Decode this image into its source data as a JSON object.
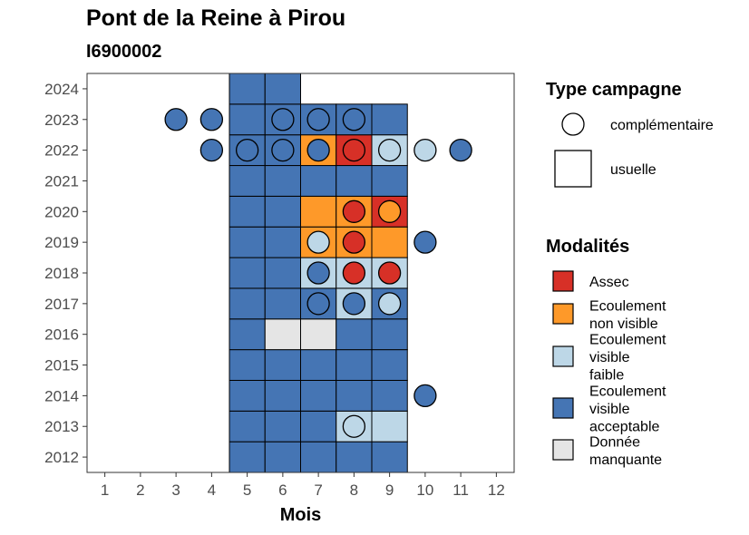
{
  "header": {
    "title": "Pont de la Reine à Pirou",
    "subtitle": "I6900002"
  },
  "colors": {
    "Assec": "#d73027",
    "Ecoulement non visible": "#fe9929",
    "Ecoulement visible faible": "#bdd7e7",
    "Ecoulement visible acceptable": "#4575b4",
    "Donnée manquante": "#e5e5e5"
  },
  "legend": {
    "campagne_title": "Type campagne",
    "campagne_items": [
      {
        "label": "complémentaire",
        "shape": "circle"
      },
      {
        "label": "usuelle",
        "shape": "square"
      }
    ],
    "modalites_title": "Modalités",
    "modalites_items": [
      {
        "key": "Assec",
        "lines": [
          "Assec"
        ]
      },
      {
        "key": "Ecoulement non visible",
        "lines": [
          "Ecoulement",
          "non visible"
        ]
      },
      {
        "key": "Ecoulement visible faible",
        "lines": [
          "Ecoulement",
          "visible",
          "faible"
        ]
      },
      {
        "key": "Ecoulement visible acceptable",
        "lines": [
          "Ecoulement",
          "visible",
          "acceptable"
        ]
      },
      {
        "key": "Donnée manquante",
        "lines": [
          "Donnée",
          "manquante"
        ]
      }
    ]
  },
  "chart_data": {
    "type": "heatmap",
    "xlabel": "Mois",
    "ylabel": "",
    "x_ticks": [
      "1",
      "2",
      "3",
      "4",
      "5",
      "6",
      "7",
      "8",
      "9",
      "10",
      "11",
      "12"
    ],
    "y_ticks": [
      "2012",
      "2013",
      "2014",
      "2015",
      "2016",
      "2017",
      "2018",
      "2019",
      "2020",
      "2021",
      "2022",
      "2023",
      "2024"
    ],
    "xlim": [
      0.5,
      12.5
    ],
    "ylim": [
      2011.5,
      2024.5
    ],
    "usuelle": [
      {
        "year": 2012,
        "month": 5,
        "value": "Ecoulement visible acceptable"
      },
      {
        "year": 2012,
        "month": 6,
        "value": "Ecoulement visible acceptable"
      },
      {
        "year": 2012,
        "month": 7,
        "value": "Ecoulement visible acceptable"
      },
      {
        "year": 2012,
        "month": 8,
        "value": "Ecoulement visible acceptable"
      },
      {
        "year": 2012,
        "month": 9,
        "value": "Ecoulement visible acceptable"
      },
      {
        "year": 2013,
        "month": 5,
        "value": "Ecoulement visible acceptable"
      },
      {
        "year": 2013,
        "month": 6,
        "value": "Ecoulement visible acceptable"
      },
      {
        "year": 2013,
        "month": 7,
        "value": "Ecoulement visible acceptable"
      },
      {
        "year": 2013,
        "month": 8,
        "value": "Ecoulement visible faible"
      },
      {
        "year": 2013,
        "month": 9,
        "value": "Ecoulement visible faible"
      },
      {
        "year": 2014,
        "month": 5,
        "value": "Ecoulement visible acceptable"
      },
      {
        "year": 2014,
        "month": 6,
        "value": "Ecoulement visible acceptable"
      },
      {
        "year": 2014,
        "month": 7,
        "value": "Ecoulement visible acceptable"
      },
      {
        "year": 2014,
        "month": 8,
        "value": "Ecoulement visible acceptable"
      },
      {
        "year": 2014,
        "month": 9,
        "value": "Ecoulement visible acceptable"
      },
      {
        "year": 2015,
        "month": 5,
        "value": "Ecoulement visible acceptable"
      },
      {
        "year": 2015,
        "month": 6,
        "value": "Ecoulement visible acceptable"
      },
      {
        "year": 2015,
        "month": 7,
        "value": "Ecoulement visible acceptable"
      },
      {
        "year": 2015,
        "month": 8,
        "value": "Ecoulement visible acceptable"
      },
      {
        "year": 2015,
        "month": 9,
        "value": "Ecoulement visible acceptable"
      },
      {
        "year": 2016,
        "month": 5,
        "value": "Ecoulement visible acceptable"
      },
      {
        "year": 2016,
        "month": 6,
        "value": "Donnée manquante"
      },
      {
        "year": 2016,
        "month": 7,
        "value": "Donnée manquante"
      },
      {
        "year": 2016,
        "month": 8,
        "value": "Ecoulement visible acceptable"
      },
      {
        "year": 2016,
        "month": 9,
        "value": "Ecoulement visible acceptable"
      },
      {
        "year": 2017,
        "month": 5,
        "value": "Ecoulement visible acceptable"
      },
      {
        "year": 2017,
        "month": 6,
        "value": "Ecoulement visible acceptable"
      },
      {
        "year": 2017,
        "month": 7,
        "value": "Ecoulement visible acceptable"
      },
      {
        "year": 2017,
        "month": 8,
        "value": "Ecoulement visible faible"
      },
      {
        "year": 2017,
        "month": 9,
        "value": "Ecoulement visible acceptable"
      },
      {
        "year": 2018,
        "month": 5,
        "value": "Ecoulement visible acceptable"
      },
      {
        "year": 2018,
        "month": 6,
        "value": "Ecoulement visible acceptable"
      },
      {
        "year": 2018,
        "month": 7,
        "value": "Ecoulement visible faible"
      },
      {
        "year": 2018,
        "month": 8,
        "value": "Ecoulement visible faible"
      },
      {
        "year": 2018,
        "month": 9,
        "value": "Ecoulement visible faible"
      },
      {
        "year": 2019,
        "month": 5,
        "value": "Ecoulement visible acceptable"
      },
      {
        "year": 2019,
        "month": 6,
        "value": "Ecoulement visible acceptable"
      },
      {
        "year": 2019,
        "month": 7,
        "value": "Ecoulement non visible"
      },
      {
        "year": 2019,
        "month": 8,
        "value": "Ecoulement non visible"
      },
      {
        "year": 2019,
        "month": 9,
        "value": "Ecoulement non visible"
      },
      {
        "year": 2020,
        "month": 5,
        "value": "Ecoulement visible acceptable"
      },
      {
        "year": 2020,
        "month": 6,
        "value": "Ecoulement visible acceptable"
      },
      {
        "year": 2020,
        "month": 7,
        "value": "Ecoulement non visible"
      },
      {
        "year": 2020,
        "month": 8,
        "value": "Ecoulement non visible"
      },
      {
        "year": 2020,
        "month": 9,
        "value": "Assec"
      },
      {
        "year": 2021,
        "month": 5,
        "value": "Ecoulement visible acceptable"
      },
      {
        "year": 2021,
        "month": 6,
        "value": "Ecoulement visible acceptable"
      },
      {
        "year": 2021,
        "month": 7,
        "value": "Ecoulement visible acceptable"
      },
      {
        "year": 2021,
        "month": 8,
        "value": "Ecoulement visible acceptable"
      },
      {
        "year": 2021,
        "month": 9,
        "value": "Ecoulement visible acceptable"
      },
      {
        "year": 2022,
        "month": 5,
        "value": "Ecoulement visible acceptable"
      },
      {
        "year": 2022,
        "month": 6,
        "value": "Ecoulement visible acceptable"
      },
      {
        "year": 2022,
        "month": 7,
        "value": "Ecoulement non visible"
      },
      {
        "year": 2022,
        "month": 8,
        "value": "Assec"
      },
      {
        "year": 2022,
        "month": 9,
        "value": "Ecoulement visible faible"
      },
      {
        "year": 2023,
        "month": 5,
        "value": "Ecoulement visible acceptable"
      },
      {
        "year": 2023,
        "month": 6,
        "value": "Ecoulement visible acceptable"
      },
      {
        "year": 2023,
        "month": 7,
        "value": "Ecoulement visible acceptable"
      },
      {
        "year": 2023,
        "month": 8,
        "value": "Ecoulement visible acceptable"
      },
      {
        "year": 2023,
        "month": 9,
        "value": "Ecoulement visible acceptable"
      },
      {
        "year": 2024,
        "month": 5,
        "value": "Ecoulement visible acceptable"
      },
      {
        "year": 2024,
        "month": 6,
        "value": "Ecoulement visible acceptable"
      }
    ],
    "complementaire": [
      {
        "year": 2013,
        "month": 8,
        "value": "Ecoulement visible faible"
      },
      {
        "year": 2014,
        "month": 10,
        "value": "Ecoulement visible acceptable"
      },
      {
        "year": 2017,
        "month": 7,
        "value": "Ecoulement visible acceptable"
      },
      {
        "year": 2017,
        "month": 8,
        "value": "Ecoulement visible acceptable"
      },
      {
        "year": 2017,
        "month": 9,
        "value": "Ecoulement visible faible"
      },
      {
        "year": 2018,
        "month": 7,
        "value": "Ecoulement visible acceptable"
      },
      {
        "year": 2018,
        "month": 8,
        "value": "Assec"
      },
      {
        "year": 2018,
        "month": 9,
        "value": "Assec"
      },
      {
        "year": 2019,
        "month": 7,
        "value": "Ecoulement visible faible"
      },
      {
        "year": 2019,
        "month": 8,
        "value": "Assec"
      },
      {
        "year": 2019,
        "month": 10,
        "value": "Ecoulement visible acceptable"
      },
      {
        "year": 2020,
        "month": 8,
        "value": "Assec"
      },
      {
        "year": 2020,
        "month": 9,
        "value": "Ecoulement non visible"
      },
      {
        "year": 2022,
        "month": 4,
        "value": "Ecoulement visible acceptable"
      },
      {
        "year": 2022,
        "month": 5,
        "value": "Ecoulement visible acceptable"
      },
      {
        "year": 2022,
        "month": 6,
        "value": "Ecoulement visible acceptable"
      },
      {
        "year": 2022,
        "month": 7,
        "value": "Ecoulement visible acceptable"
      },
      {
        "year": 2022,
        "month": 8,
        "value": "Assec"
      },
      {
        "year": 2022,
        "month": 9,
        "value": "Ecoulement visible faible"
      },
      {
        "year": 2022,
        "month": 10,
        "value": "Ecoulement visible faible"
      },
      {
        "year": 2022,
        "month": 11,
        "value": "Ecoulement visible acceptable"
      },
      {
        "year": 2023,
        "month": 3,
        "value": "Ecoulement visible acceptable"
      },
      {
        "year": 2023,
        "month": 4,
        "value": "Ecoulement visible acceptable"
      },
      {
        "year": 2023,
        "month": 6,
        "value": "Ecoulement visible acceptable"
      },
      {
        "year": 2023,
        "month": 7,
        "value": "Ecoulement visible acceptable"
      },
      {
        "year": 2023,
        "month": 8,
        "value": "Ecoulement visible acceptable"
      }
    ]
  }
}
